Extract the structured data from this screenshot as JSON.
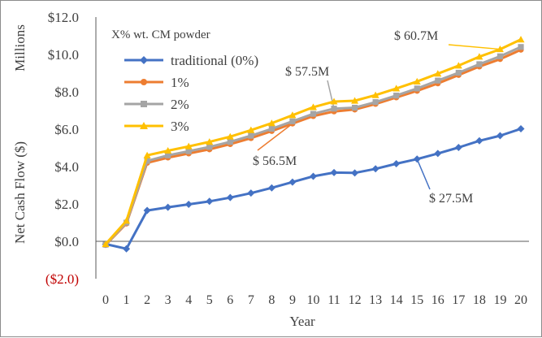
{
  "chart_data": {
    "type": "line",
    "title": "",
    "xlabel": "Year",
    "ylabel": "Net Cash Flow ($)",
    "y_units_label": "Millions",
    "x": [
      0,
      1,
      2,
      3,
      4,
      5,
      6,
      7,
      8,
      9,
      10,
      11,
      12,
      13,
      14,
      15,
      16,
      17,
      18,
      19,
      20
    ],
    "x_tick_labels": [
      "0",
      "1",
      "2",
      "3",
      "4",
      "5",
      "6",
      "7",
      "8",
      "9",
      "10",
      "11",
      "12",
      "13",
      "14",
      "15",
      "16",
      "17",
      "18",
      "19",
      "20"
    ],
    "ylim": [
      -2.0,
      12.0
    ],
    "y_ticks": [
      -2.0,
      0.0,
      2.0,
      4.0,
      6.0,
      8.0,
      10.0,
      12.0
    ],
    "y_tick_labels": [
      "($2.0)",
      "$0.0",
      "$2.0",
      "$4.0",
      "$6.0",
      "$8.0",
      "$10.0",
      "$12.0"
    ],
    "grid": false,
    "legend": {
      "title": "X% wt. CM powder",
      "position": "top-left"
    },
    "series": [
      {
        "name": "traditional (0%)",
        "color": "#4472C4",
        "marker": "diamond",
        "values": [
          -0.15,
          -0.4,
          1.65,
          1.82,
          1.98,
          2.14,
          2.34,
          2.58,
          2.86,
          3.17,
          3.48,
          3.68,
          3.66,
          3.88,
          4.15,
          4.4,
          4.7,
          5.02,
          5.38,
          5.65,
          6.02
        ]
      },
      {
        "name": "1%",
        "color": "#ED7D31",
        "marker": "circle",
        "values": [
          -0.2,
          0.95,
          4.2,
          4.48,
          4.7,
          4.92,
          5.2,
          5.52,
          5.9,
          6.3,
          6.7,
          6.95,
          7.05,
          7.35,
          7.7,
          8.05,
          8.45,
          8.9,
          9.35,
          9.75,
          10.25
        ]
      },
      {
        "name": "2%",
        "color": "#A5A5A5",
        "marker": "square",
        "values": [
          -0.18,
          1.0,
          4.3,
          4.6,
          4.82,
          5.05,
          5.32,
          5.65,
          6.02,
          6.42,
          6.82,
          7.1,
          7.15,
          7.45,
          7.8,
          8.18,
          8.6,
          9.02,
          9.48,
          9.9,
          10.4
        ]
      },
      {
        "name": "3%",
        "color": "#FFC000",
        "marker": "triangle",
        "values": [
          -0.15,
          1.1,
          4.6,
          4.85,
          5.08,
          5.32,
          5.6,
          5.95,
          6.32,
          6.75,
          7.18,
          7.48,
          7.52,
          7.82,
          8.18,
          8.55,
          8.97,
          9.4,
          9.88,
          10.28,
          10.8
        ]
      }
    ],
    "annotations": [
      {
        "text": "$ 60.7M",
        "series": "3%",
        "x": 19
      },
      {
        "text": "$ 57.5M",
        "series": "2%",
        "x": 11
      },
      {
        "text": "$ 56.5M",
        "series": "1%",
        "x": 9
      },
      {
        "text": "$ 27.5M",
        "series": "traditional (0%)",
        "x": 15
      }
    ]
  },
  "colors": {
    "negative_tick": "#C00000",
    "axis": "#595959",
    "text": "#404040"
  }
}
